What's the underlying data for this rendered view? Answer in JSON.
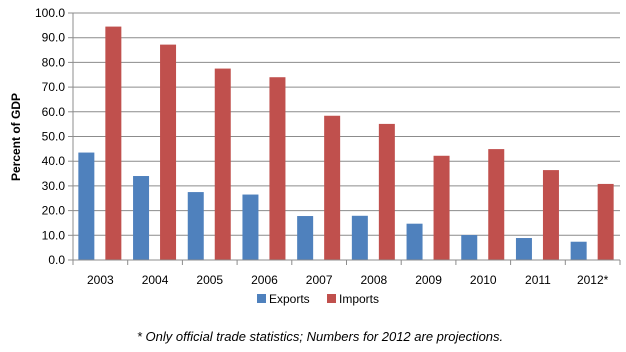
{
  "chart_data": {
    "type": "bar",
    "categories": [
      "2003",
      "2004",
      "2005",
      "2006",
      "2007",
      "2008",
      "2009",
      "2010",
      "2011",
      "2012*"
    ],
    "series": [
      {
        "name": "Exports",
        "color": "#4F81BD",
        "values": [
          43.5,
          34.0,
          27.5,
          26.5,
          17.8,
          17.9,
          14.7,
          10.1,
          8.9,
          7.4
        ]
      },
      {
        "name": "Imports",
        "color": "#C0504D",
        "values": [
          94.5,
          87.2,
          77.5,
          74.0,
          58.4,
          55.1,
          42.2,
          44.9,
          36.4,
          30.8
        ]
      }
    ],
    "ylabel": "Percent of GDP",
    "ylim": [
      0,
      100
    ],
    "yticks": [
      "0.0",
      "10.0",
      "20.0",
      "30.0",
      "40.0",
      "50.0",
      "60.0",
      "70.0",
      "80.0",
      "90.0",
      "100.0"
    ],
    "grid": true,
    "legend": "bottom"
  },
  "footnote": "* Only official trade statistics; Numbers for 2012 are projections."
}
